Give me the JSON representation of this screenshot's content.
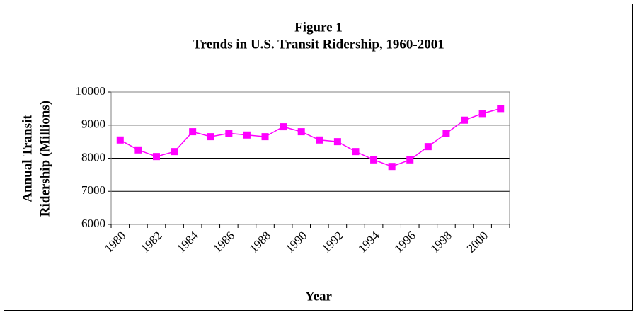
{
  "chart_data": {
    "type": "line",
    "title": "Figure 1",
    "subtitle": "Trends in U.S. Transit Ridership, 1960-2001",
    "ylabel": [
      "Annual Transit",
      "Ridership (Millions)"
    ],
    "xlabel": "Year",
    "categories": [
      "1980",
      null,
      "1982",
      null,
      "1984",
      null,
      "1986",
      null,
      "1988",
      null,
      "1990",
      null,
      "1992",
      null,
      "1994",
      null,
      "1996",
      null,
      "1998",
      null,
      "2000",
      null
    ],
    "values": [
      8550,
      8250,
      8050,
      8200,
      8800,
      8650,
      8750,
      8700,
      8650,
      8950,
      8800,
      8550,
      8500,
      8200,
      7950,
      7750,
      7950,
      8350,
      8750,
      9150,
      9350,
      9500
    ],
    "color": "#ff00ff",
    "ylim": [
      6000,
      10000
    ],
    "yticks": [
      6000,
      7000,
      8000,
      9000,
      10000
    ],
    "grid": true
  }
}
